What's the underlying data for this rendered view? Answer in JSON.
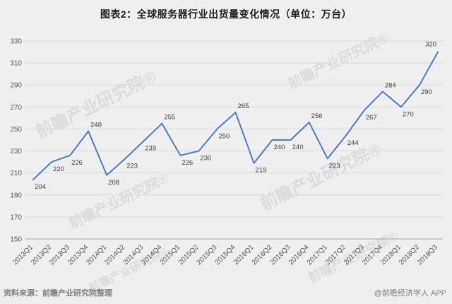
{
  "title": "图表2：全球服务器行业出货量变化情况（单位：万台）",
  "watermark": "前瞻产业研究院®",
  "footer": {
    "source": "资料来源：前瞻产业研究院整理",
    "credit": "@前瞻经济学人 APP"
  },
  "chart_data": {
    "type": "line",
    "title": "图表2：全球服务器行业出货量变化情况（单位：万台）",
    "categories": [
      "2013Q1",
      "2013Q2",
      "2013Q3",
      "2013Q4",
      "2014Q1",
      "2014Q2",
      "2014Q3",
      "2014Q4",
      "2015Q1",
      "2015Q2",
      "2015Q3",
      "2015Q4",
      "2016Q1",
      "2016Q2",
      "2016Q3",
      "2016Q4",
      "2017Q1",
      "2017Q2",
      "2017Q3",
      "2017Q4",
      "2018Q1",
      "2018Q2",
      "2018Q3"
    ],
    "values": [
      204,
      220,
      226,
      248,
      208,
      223,
      239,
      255,
      226,
      230,
      250,
      265,
      219,
      240,
      240,
      256,
      223,
      244,
      267,
      284,
      270,
      290,
      320
    ],
    "ylim": [
      150,
      330
    ],
    "ytick_step": 20,
    "grid": true,
    "legend_position": "none",
    "xlabel": "",
    "ylabel": "",
    "line_color": "#4a7ebc",
    "grid_color": "#d8d8d8",
    "axis_color": "#a6a6a6",
    "tick_label_color": "#595959",
    "data_label_color": "#404040",
    "background": "#efefef"
  }
}
